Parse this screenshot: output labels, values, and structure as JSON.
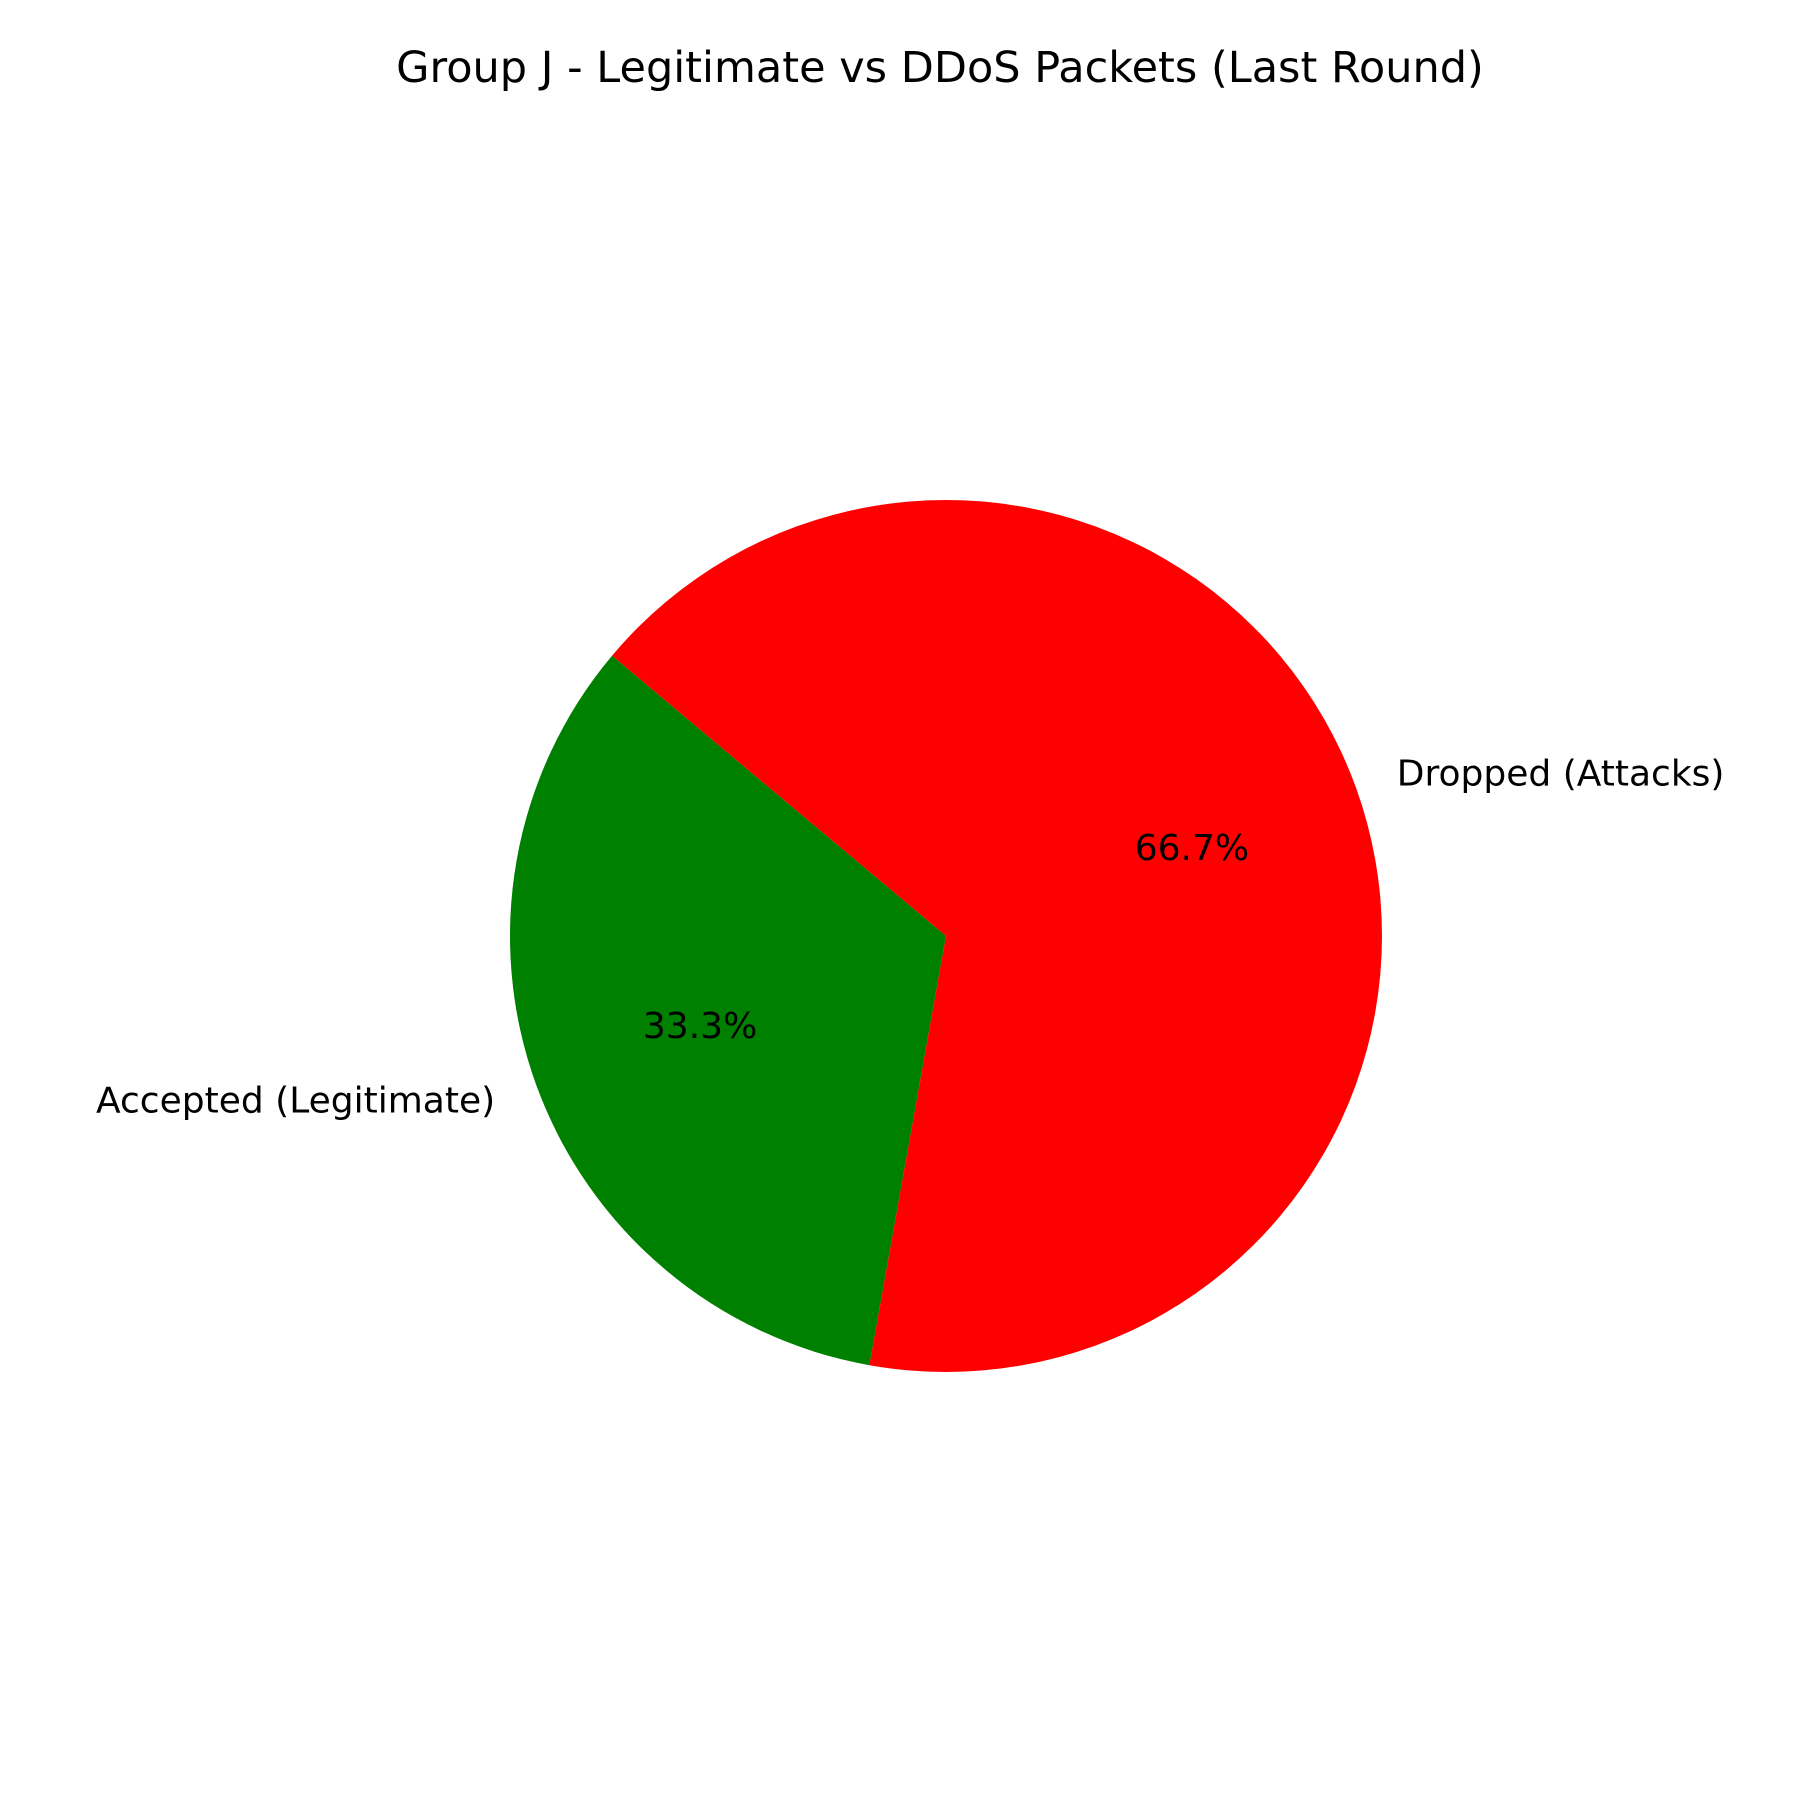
{
  "chart_data": {
    "type": "pie",
    "title": "Group J - Legitimate vs DDoS Packets (Last Round)",
    "slices": [
      {
        "label": "Accepted (Legitimate)",
        "value": 33.3,
        "pct_text": "33.3%",
        "color": "#008000"
      },
      {
        "label": "Dropped (Attacks)",
        "value": 66.7,
        "pct_text": "66.7%",
        "color": "#ff0000"
      }
    ],
    "start_angle_deg": 140,
    "direction": "counterclockwise",
    "legend": "none"
  }
}
